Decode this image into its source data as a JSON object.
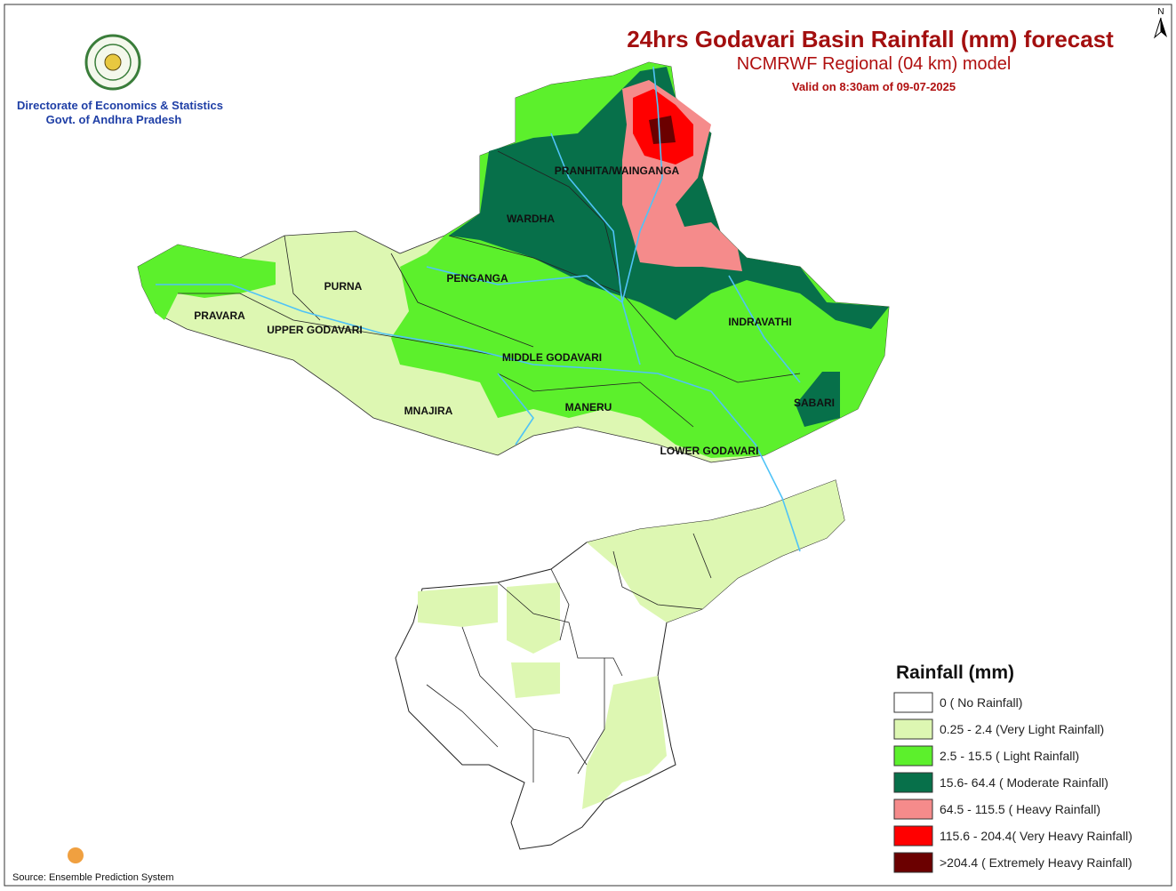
{
  "header": {
    "title": "24hrs Godavari Basin Rainfall (mm) forecast",
    "subtitle": "NCMRWF Regional (04 km) model",
    "valid": "Valid on 8:30am of 09-07-2025"
  },
  "organization": {
    "line1": "Directorate of Economics & Statistics",
    "line2": "Govt. of Andhra Pradesh"
  },
  "north": "N",
  "basins": [
    "PRANHITA/WAINGANGA",
    "WARDHA",
    "PENGANGA",
    "PURNA",
    "PRAVARA",
    "UPPER GODAVARI",
    "INDRAVATHI",
    "MIDDLE GODAVARI",
    "MNAJIRA",
    "MANERU",
    "SABARI",
    "LOWER GODAVARI"
  ],
  "legend": {
    "title": "Rainfall (mm)",
    "items": [
      {
        "label": "0 ( No Rainfall)",
        "color": "#ffffff"
      },
      {
        "label": "0.25 - 2.4 (Very Light Rainfall)",
        "color": "#ddf7b2"
      },
      {
        "label": "2.5 - 15.5 ( Light Rainfall)",
        "color": "#5cf02c"
      },
      {
        "label": "15.6- 64.4 ( Moderate Rainfall)",
        "color": "#07704a"
      },
      {
        "label": "64.5 - 115.5 ( Heavy Rainfall)",
        "color": "#f58b8b"
      },
      {
        "label": "115.6 - 204.4( Very Heavy Rainfall)",
        "color": "#ff0000"
      },
      {
        "label": ">204.4 ( Extremely Heavy Rainfall)",
        "color": "#6b0000"
      }
    ]
  },
  "source": "Source: Ensemble Prediction System"
}
